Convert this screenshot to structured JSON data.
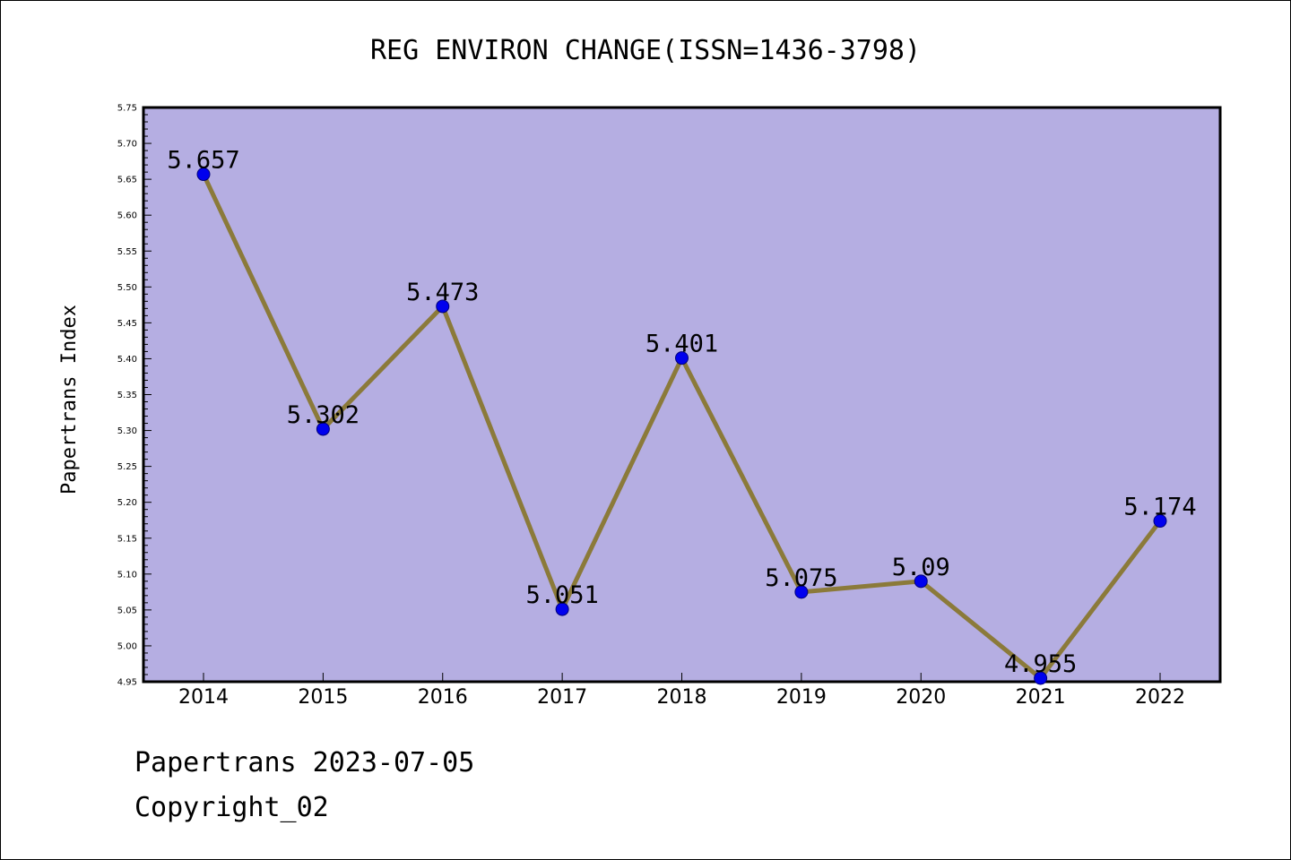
{
  "chart_data": {
    "type": "line",
    "title": "REG ENVIRON CHANGE(ISSN=1436-3798)",
    "xlabel": "",
    "ylabel": "Papertrans Index",
    "categories": [
      "2014",
      "2015",
      "2016",
      "2017",
      "2018",
      "2019",
      "2020",
      "2021",
      "2022"
    ],
    "series": [
      {
        "values": [
          5.657,
          5.302,
          5.473,
          5.051,
          5.401,
          5.075,
          5.09,
          4.955,
          5.174
        ]
      }
    ],
    "data_labels": [
      "5.657",
      "5.302",
      "5.473",
      "5.051",
      "5.401",
      "5.075",
      "5.09",
      "4.955",
      "5.174"
    ],
    "ylim": [
      4.95,
      5.75
    ],
    "ytick_labels": [
      "4.95",
      "5.00",
      "5.05",
      "5.10",
      "5.15",
      "5.20",
      "5.25",
      "5.30",
      "5.35",
      "5.40",
      "5.45",
      "5.50",
      "5.55",
      "5.60",
      "5.65",
      "5.70",
      "5.75"
    ],
    "grid": false,
    "legend": "none",
    "colors": {
      "plot_background": "#b5aee2",
      "line": "#8b7a3a",
      "marker": "#0000ee"
    }
  },
  "footer": {
    "date_line": "Papertrans 2023-07-05",
    "copyright_line": "Copyright_02"
  }
}
